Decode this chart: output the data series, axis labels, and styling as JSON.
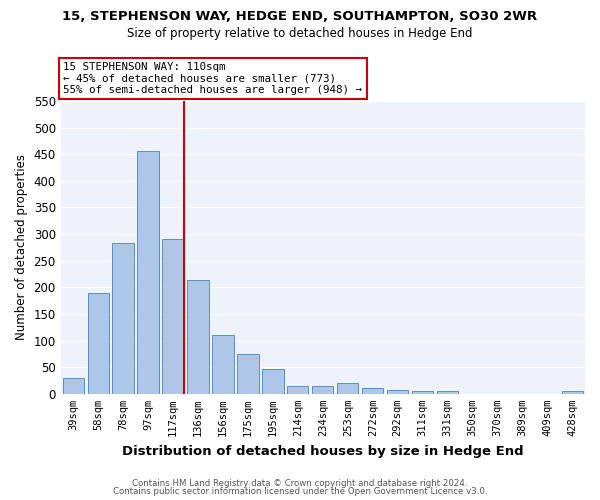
{
  "title": "15, STEPHENSON WAY, HEDGE END, SOUTHAMPTON, SO30 2WR",
  "subtitle": "Size of property relative to detached houses in Hedge End",
  "xlabel": "Distribution of detached houses by size in Hedge End",
  "ylabel": "Number of detached properties",
  "categories": [
    "39sqm",
    "58sqm",
    "78sqm",
    "97sqm",
    "117sqm",
    "136sqm",
    "156sqm",
    "175sqm",
    "195sqm",
    "214sqm",
    "234sqm",
    "253sqm",
    "272sqm",
    "292sqm",
    "311sqm",
    "331sqm",
    "350sqm",
    "370sqm",
    "389sqm",
    "409sqm",
    "428sqm"
  ],
  "values": [
    30,
    190,
    284,
    455,
    290,
    214,
    110,
    74,
    47,
    14,
    14,
    20,
    10,
    7,
    5,
    5,
    0,
    0,
    0,
    0,
    5
  ],
  "bar_color": "#aec6e8",
  "bar_edge_color": "#5b8fc9",
  "red_line_index": 4,
  "annotation_line1": "15 STEPHENSON WAY: 110sqm",
  "annotation_line2": "← 45% of detached houses are smaller (773)",
  "annotation_line3": "55% of semi-detached houses are larger (948) →",
  "annotation_box_color": "white",
  "annotation_box_edge_color": "#cc0000",
  "red_line_color": "#cc0000",
  "background_color": "#eef2fb",
  "grid_color": "white",
  "ylim": [
    0,
    550
  ],
  "yticks": [
    0,
    50,
    100,
    150,
    200,
    250,
    300,
    350,
    400,
    450,
    500,
    550
  ],
  "footer_line1": "Contains HM Land Registry data © Crown copyright and database right 2024.",
  "footer_line2": "Contains public sector information licensed under the Open Government Licence v3.0."
}
